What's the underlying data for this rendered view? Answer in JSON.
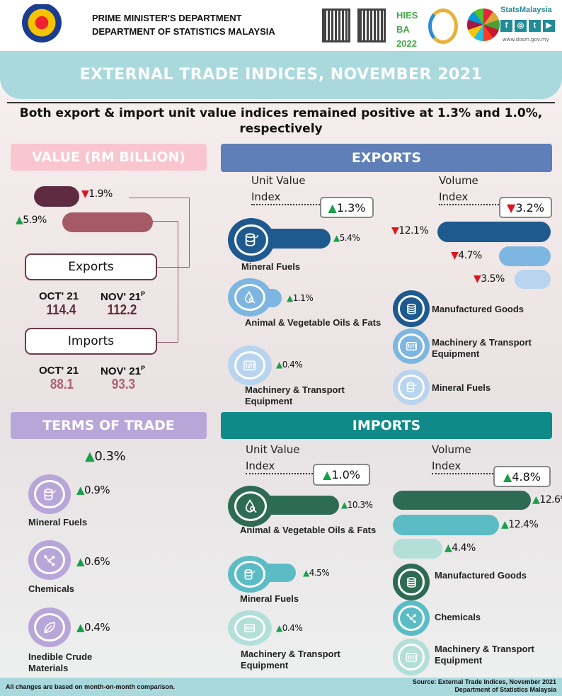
{
  "header": {
    "dept_line1": "PRIME MINISTER'S DEPARTMENT",
    "dept_line2": "DEPARTMENT OF STATISTICS MALAYSIA",
    "hies_logo": "HIES BA 2022",
    "stats_brand": "StatsMalaysia",
    "url": "www.dosm.gov.my",
    "social": [
      "f",
      "◎",
      "t",
      "▶"
    ]
  },
  "title": "EXTERNAL TRADE INDICES, NOVEMBER 2021",
  "subtitle_line1": "Both export & import unit value indices remained positive at 1.3% and 1.0%,",
  "subtitle_line2": "respectively",
  "colors": {
    "up": "#1a9e4a",
    "down": "#e0141e",
    "value_header": "#f9c6cf",
    "exports_header": "#5f7fb8",
    "terms_header": "#b9a6d9",
    "imports_header": "#0f8a88"
  },
  "value": {
    "heading": "VALUE (RM BILLION)",
    "exports_change": "1.9%",
    "exports_dir": "down",
    "imports_change": "5.9%",
    "imports_dir": "up",
    "exports": {
      "label": "Exports",
      "oct_label": "OCT' 21",
      "nov_label": "NOV' 21",
      "nov_sup": "P",
      "oct": "114.4",
      "nov": "112.2"
    },
    "imports": {
      "label": "Imports",
      "oct_label": "OCT' 21",
      "nov_label": "NOV' 21",
      "nov_sup": "P",
      "oct": "88.1",
      "nov": "93.3"
    }
  },
  "exports": {
    "heading": "EXPORTS",
    "uvi": {
      "label1": "Unit Value",
      "label2": "Index",
      "change": "1.3%",
      "dir": "up",
      "items": [
        {
          "label": "Mineral Fuels",
          "change": "5.4%",
          "dir": "up",
          "icon": "oil-barrel-icon"
        },
        {
          "label": "Animal & Vegetable Oils & Fats",
          "change": "1.1%",
          "dir": "up",
          "icon": "oil-drop-icon"
        },
        {
          "label": "Machinery & Transport Equipment",
          "change": "0.4%",
          "dir": "up",
          "icon": "machinery-icon"
        }
      ]
    },
    "volume": {
      "label1": "Volume",
      "label2": "Index",
      "change": "3.2%",
      "dir": "down",
      "bars": [
        {
          "change": "12.1%",
          "dir": "down"
        },
        {
          "change": "4.7%",
          "dir": "down"
        },
        {
          "change": "3.5%",
          "dir": "down"
        }
      ],
      "legend": [
        {
          "label": "Manufactured Goods",
          "icon": "coins-icon"
        },
        {
          "label": "Machinery & Transport Equipment",
          "icon": "machinery-icon"
        },
        {
          "label": "Mineral Fuels",
          "icon": "oil-barrel-icon"
        }
      ]
    }
  },
  "terms": {
    "heading": "TERMS OF TRADE",
    "change": "0.3%",
    "dir": "up",
    "items": [
      {
        "label": "Mineral Fuels",
        "change": "0.9%",
        "dir": "up",
        "icon": "oil-barrel-icon"
      },
      {
        "label": "Chemicals",
        "change": "0.6%",
        "dir": "up",
        "icon": "molecule-icon"
      },
      {
        "label": "Inedible Crude Materials",
        "change": "0.4%",
        "dir": "up",
        "icon": "leaf-icon"
      }
    ]
  },
  "imports": {
    "heading": "IMPORTS",
    "uvi": {
      "label1": "Unit Value",
      "label2": "Index",
      "change": "1.0%",
      "dir": "up",
      "items": [
        {
          "label": "Animal & Vegetable Oils & Fats",
          "change": "10.3%",
          "dir": "up",
          "icon": "oil-drop-icon"
        },
        {
          "label": "Mineral Fuels",
          "change": "4.5%",
          "dir": "up",
          "icon": "oil-barrel-icon"
        },
        {
          "label": "Machinery & Transport Equipment",
          "change": "0.4%",
          "dir": "up",
          "icon": "machinery-icon"
        }
      ]
    },
    "volume": {
      "label1": "Volume",
      "label2": "Index",
      "change": "4.8%",
      "dir": "up",
      "bars": [
        {
          "change": "12.6%",
          "dir": "up"
        },
        {
          "change": "12.4%",
          "dir": "up"
        },
        {
          "change": "4.4%",
          "dir": "up"
        }
      ],
      "legend": [
        {
          "label": "Manufactured Goods",
          "icon": "coins-icon"
        },
        {
          "label": "Chemicals",
          "icon": "molecule-icon"
        },
        {
          "label": "Machinery & Transport Equipment",
          "icon": "machinery-icon"
        }
      ]
    }
  },
  "footer": {
    "note": "All changes are based on month-on-month comparison.",
    "source1": "Source: External Trade Indices, November 2021",
    "source2": "Department of Statistics Malaysia"
  }
}
